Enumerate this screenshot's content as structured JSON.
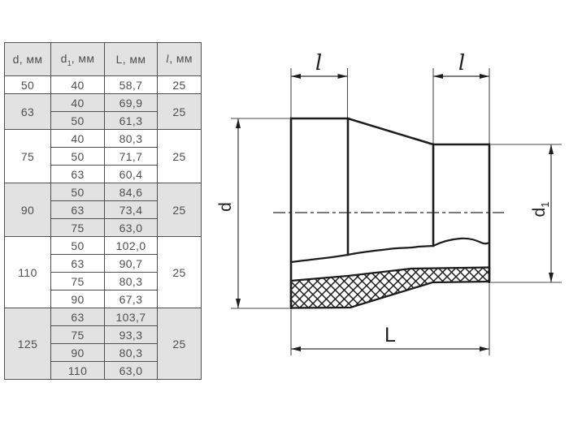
{
  "table": {
    "header": {
      "col_d": "d, мм",
      "col_d1_base": "d",
      "col_d1_sub": "1",
      "col_d1_rest": ", мм",
      "col_L": "L, мм",
      "col_l_base": "l",
      "col_l_rest": ", мм"
    },
    "groups": [
      {
        "d": "50",
        "l": "25",
        "shaded": false,
        "rows": [
          [
            "40",
            "58,7"
          ]
        ]
      },
      {
        "d": "63",
        "l": "25",
        "shaded": true,
        "rows": [
          [
            "40",
            "69,9"
          ],
          [
            "50",
            "61,3"
          ]
        ]
      },
      {
        "d": "75",
        "l": "25",
        "shaded": false,
        "rows": [
          [
            "40",
            "80,3"
          ],
          [
            "50",
            "71,7"
          ],
          [
            "63",
            "60,4"
          ]
        ]
      },
      {
        "d": "90",
        "l": "25",
        "shaded": true,
        "rows": [
          [
            "50",
            "84,6"
          ],
          [
            "63",
            "73,4"
          ],
          [
            "75",
            "63,0"
          ]
        ]
      },
      {
        "d": "110",
        "l": "25",
        "shaded": false,
        "rows": [
          [
            "50",
            "102,0"
          ],
          [
            "63",
            "90,7"
          ],
          [
            "75",
            "80,3"
          ],
          [
            "90",
            "67,3"
          ]
        ]
      },
      {
        "d": "125",
        "l": "25",
        "shaded": true,
        "rows": [
          [
            "63",
            "103,7"
          ],
          [
            "75",
            "93,3"
          ],
          [
            "90",
            "80,3"
          ],
          [
            "110",
            "63,0"
          ]
        ]
      }
    ],
    "colors": {
      "shaded_bg": "#e2e2e2",
      "border": "#4f4f4f",
      "text": "#4f4f4f"
    }
  },
  "drawing": {
    "labels": {
      "l_left": "l",
      "l_right": "l",
      "d": "d",
      "d1_base": "d",
      "d1_sub": "1",
      "L": "L"
    },
    "line_color": "#1d1d1d"
  }
}
